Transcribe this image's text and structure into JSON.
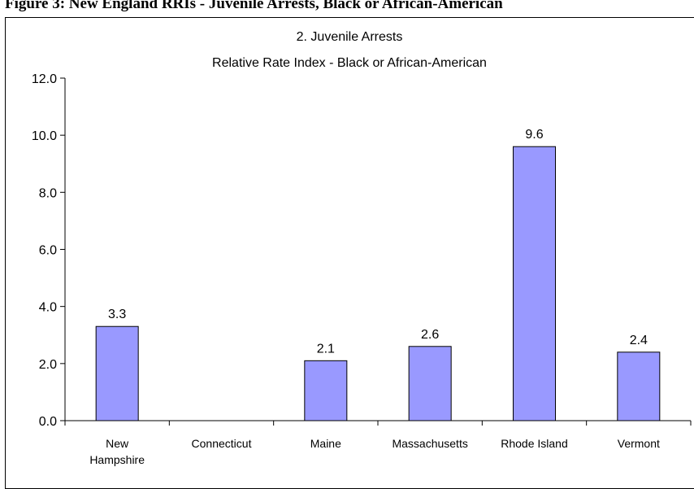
{
  "figure_caption": "Figure 3: New England RRIs - Juvenile Arrests, Black or African-American",
  "chart_data": {
    "type": "bar",
    "title": "2. Juvenile Arrests",
    "subtitle": "Relative Rate Index - Black or African-American",
    "categories": [
      "New\nHampshire",
      "Connecticut",
      "Maine",
      "Massachusetts",
      "Rhode Island",
      "Vermont"
    ],
    "values": [
      3.3,
      null,
      2.1,
      2.6,
      9.6,
      2.4
    ],
    "data_labels": [
      "3.3",
      "",
      "2.1",
      "2.6",
      "9.6",
      "2.4"
    ],
    "ylim": [
      0,
      12
    ],
    "yticks": [
      "0.0",
      "2.0",
      "4.0",
      "6.0",
      "8.0",
      "10.0",
      "12.0"
    ],
    "xlabel": "",
    "ylabel": "",
    "grid": false,
    "legend": "none",
    "bar_color": "#9999ff"
  }
}
